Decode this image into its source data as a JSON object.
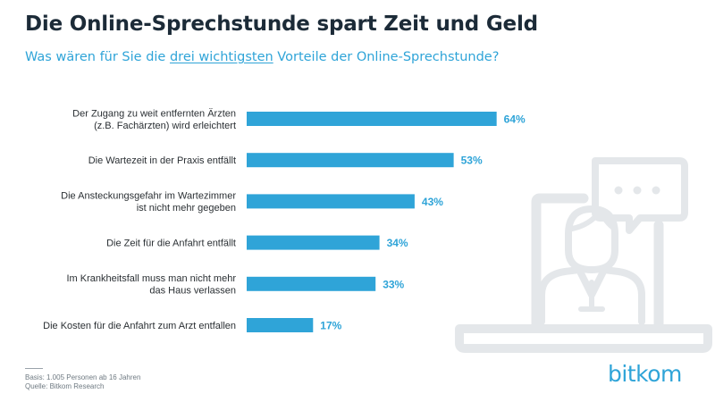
{
  "header": {
    "title": "Die Online-Sprechstunde spart Zeit und Geld",
    "subtitle_pre": "Was wären für Sie die ",
    "subtitle_emph": "drei wichtigsten",
    "subtitle_post": " Vorteile der Online-Sprechstunde?"
  },
  "chart_data": {
    "type": "bar",
    "orientation": "horizontal",
    "categories": [
      [
        "Der Zugang zu weit entfernten Ärzten",
        "(z.B. Fachärzten) wird erleichtert"
      ],
      [
        "Die Wartezeit in der Praxis entfällt"
      ],
      [
        "Die Ansteckungsgefahr im Wartezimmer",
        "ist nicht mehr gegeben"
      ],
      [
        "Die Zeit für die Anfahrt entfällt"
      ],
      [
        "Im Krankheitsfall muss man nicht mehr",
        "das Haus verlassen"
      ],
      [
        "Die Kosten für die Anfahrt zum Arzt entfallen"
      ]
    ],
    "values": [
      64,
      53,
      43,
      34,
      33,
      17
    ],
    "value_labels": [
      "64%",
      "53%",
      "43%",
      "34%",
      "33%",
      "17%"
    ],
    "unit": "%",
    "xlim": [
      0,
      100
    ],
    "bar_color": "#2fa4d8",
    "label_color": "#2fa4d8",
    "grid": false
  },
  "footer": {
    "basis": "Basis: 1.005 Personen ab 16 Jahren",
    "source": "Quelle: Bitkom Research"
  },
  "logo": {
    "text": "bitkom"
  },
  "illustration": {
    "icon": "doctor-video-call-icon"
  },
  "colors": {
    "accent": "#2fa4d8",
    "title": "#1c2b38",
    "illustration": "#e4e7ea"
  }
}
